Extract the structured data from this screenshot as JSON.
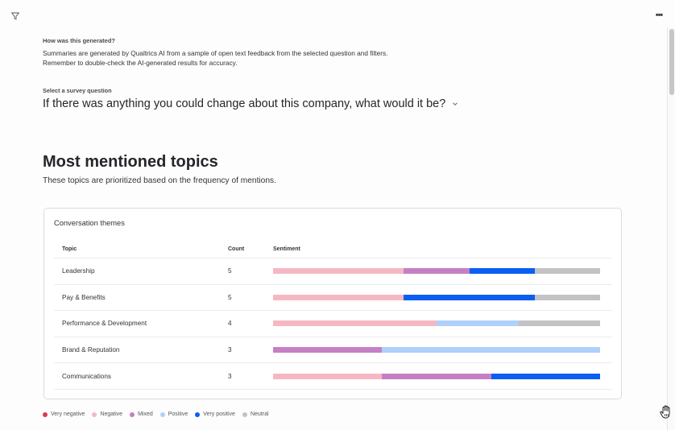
{
  "toolbar": {
    "filter_icon": "filter-icon",
    "more_icon": "more-options-icon",
    "more_label": "•••"
  },
  "info": {
    "label": "How was this generated?",
    "line1": "Summaries are generated by Qualtrics AI from a sample of open text feedback from the selected question and filters.",
    "line2": "Remember to double-check the AI-generated results for accuracy."
  },
  "question": {
    "label": "Select a survey question",
    "selected": "If there was anything you could change about this company, what would it be?",
    "chevron_icon": "chevron-down-icon"
  },
  "section": {
    "title": "Most mentioned topics",
    "subtitle": "These topics are prioritized based on the frequency of mentions."
  },
  "card": {
    "title": "Conversation themes",
    "columns": {
      "topic": "Topic",
      "count": "Count",
      "sentiment": "Sentiment"
    },
    "rows": [
      {
        "topic": "Leadership",
        "count": "5",
        "sentiment": [
          {
            "key": "negative",
            "value": 2
          },
          {
            "key": "mixed",
            "value": 1
          },
          {
            "key": "very_positive",
            "value": 1
          },
          {
            "key": "neutral",
            "value": 1
          }
        ]
      },
      {
        "topic": "Pay & Benefits",
        "count": "5",
        "sentiment": [
          {
            "key": "negative",
            "value": 2
          },
          {
            "key": "very_positive",
            "value": 2
          },
          {
            "key": "neutral",
            "value": 1
          }
        ]
      },
      {
        "topic": "Performance & Development",
        "count": "4",
        "sentiment": [
          {
            "key": "negative",
            "value": 2
          },
          {
            "key": "positive",
            "value": 1
          },
          {
            "key": "neutral",
            "value": 1
          }
        ]
      },
      {
        "topic": "Brand & Reputation",
        "count": "3",
        "sentiment": [
          {
            "key": "mixed",
            "value": 1
          },
          {
            "key": "positive",
            "value": 2
          }
        ]
      },
      {
        "topic": "Communications",
        "count": "3",
        "sentiment": [
          {
            "key": "negative",
            "value": 1
          },
          {
            "key": "mixed",
            "value": 1
          },
          {
            "key": "very_positive",
            "value": 1
          }
        ]
      }
    ]
  },
  "legend": [
    {
      "key": "very_negative",
      "label": "Very negative",
      "color": "#d93a55"
    },
    {
      "key": "negative",
      "label": "Negative",
      "color": "#f5b8c3"
    },
    {
      "key": "mixed",
      "label": "Mixed",
      "color": "#c57fc4"
    },
    {
      "key": "positive",
      "label": "Positive",
      "color": "#aed0fb"
    },
    {
      "key": "very_positive",
      "label": "Very positive",
      "color": "#0b5ef2"
    },
    {
      "key": "neutral",
      "label": "Neutral",
      "color": "#c3c3c5"
    }
  ],
  "cursor": "hand-cursor-icon"
}
